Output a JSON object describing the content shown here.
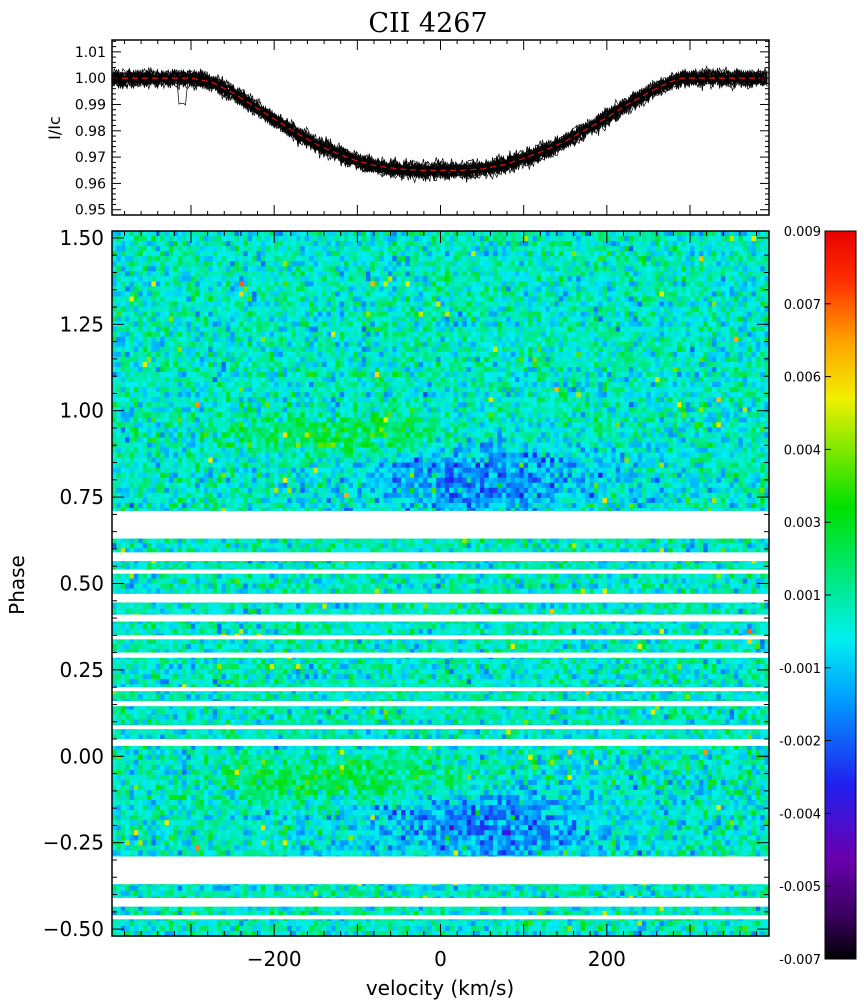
{
  "title": "CII 4267",
  "chart_data": [
    {
      "type": "line",
      "panel": "mean-profile",
      "ylabel": "I/Ic",
      "ylim": [
        0.948,
        1.0145
      ],
      "xlim": [
        -395,
        395
      ],
      "ytick_labels": [
        "1.01",
        "1.00",
        "0.99",
        "0.98",
        "0.97",
        "0.96",
        "0.95"
      ],
      "yticks": [
        1.01,
        1.0,
        0.99,
        0.98,
        0.97,
        0.96,
        0.95
      ],
      "xticks_major": [
        -200,
        0,
        200
      ],
      "series": [
        {
          "role": "individual spectra (black, overplotted)",
          "color": "#000000",
          "noise_sigma": 0.0022
        },
        {
          "role": "mean profile (red dashed)",
          "color": "#d81010",
          "x": [
            -395,
            -360,
            -330,
            -300,
            -275,
            -250,
            -225,
            -200,
            -175,
            -150,
            -125,
            -100,
            -75,
            -50,
            -25,
            0,
            25,
            50,
            75,
            100,
            125,
            150,
            175,
            200,
            225,
            250,
            275,
            290,
            320,
            360,
            395
          ],
          "y": [
            1.0,
            1.0,
            1.0,
            1.0,
            0.9985,
            0.9945,
            0.9895,
            0.9845,
            0.9795,
            0.975,
            0.9715,
            0.9685,
            0.9665,
            0.9655,
            0.965,
            0.965,
            0.965,
            0.9655,
            0.967,
            0.9695,
            0.9725,
            0.976,
            0.9805,
            0.985,
            0.99,
            0.9945,
            0.9985,
            1.0,
            1.0,
            1.0,
            1.0
          ]
        }
      ]
    },
    {
      "type": "heatmap",
      "panel": "dynamic-spectrum",
      "xlabel": "velocity (km/s)",
      "ylabel": "Phase",
      "xlim": [
        -395,
        395
      ],
      "ylim": [
        -0.52,
        1.52
      ],
      "xticks": [
        -200,
        0,
        200
      ],
      "xtick_labels": [
        "−200",
        "0",
        "200"
      ],
      "yticks": [
        1.5,
        1.25,
        1.0,
        0.75,
        0.5,
        0.25,
        0.0,
        -0.25,
        -0.5
      ],
      "ytick_labels": [
        "1.50",
        "1.25",
        "1.00",
        "0.75",
        "0.50",
        "0.25",
        "0.00",
        "−0.25",
        "−0.50"
      ],
      "empty_phase_bands": [
        [
          0.71,
          0.63
        ],
        [
          0.59,
          0.565
        ],
        [
          0.54,
          0.53
        ],
        [
          0.47,
          0.445
        ],
        [
          0.41,
          0.39
        ],
        [
          0.35,
          0.34
        ],
        [
          0.3,
          0.285
        ],
        [
          0.2,
          0.19
        ],
        [
          0.16,
          0.145
        ],
        [
          0.09,
          0.085
        ],
        [
          0.05,
          0.03
        ],
        [
          -0.29,
          -0.37
        ],
        [
          -0.41,
          -0.435
        ],
        [
          -0.46,
          -0.47
        ]
      ],
      "colorbar": {
        "min": -0.007,
        "max": 0.009,
        "tick_labels": [
          "0.009",
          "0.007",
          "0.006",
          "0.004",
          "0.003",
          "0.001",
          "-0.001",
          "-0.002",
          "-0.004",
          "-0.005",
          "-0.007"
        ],
        "colormap": "rainbow (black-purple-blue-cyan-green-yellow-red)"
      }
    }
  ]
}
